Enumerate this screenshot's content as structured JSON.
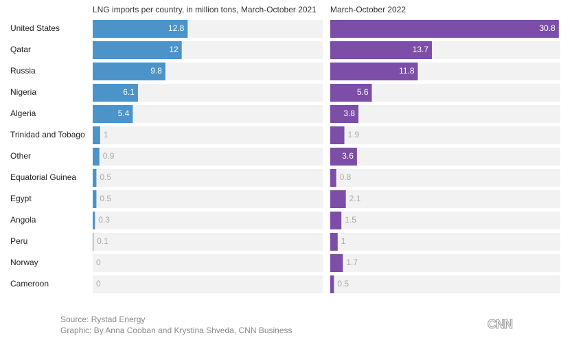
{
  "chart_data": [
    {
      "type": "bar",
      "orientation": "horizontal",
      "title": "LNG imports per country, in million tons, March-October 2021",
      "categories": [
        "United States",
        "Qatar",
        "Russia",
        "Nigeria",
        "Algeria",
        "Trinidad and Tobago",
        "Other",
        "Equatorial Guinea",
        "Egypt",
        "Angola",
        "Peru",
        "Norway",
        "Cameroon"
      ],
      "values": [
        12.8,
        12,
        9.8,
        6.1,
        5.4,
        1,
        0.9,
        0.5,
        0.5,
        0.3,
        0.1,
        0,
        0
      ],
      "color": "#4b93c9",
      "xlim": [
        0,
        31
      ]
    },
    {
      "type": "bar",
      "orientation": "horizontal",
      "title": "March-October 2022",
      "values": [
        30.8,
        13.7,
        11.8,
        5.6,
        3.8,
        1.9,
        3.6,
        0.8,
        2.1,
        1.5,
        1,
        1.7,
        0.5
      ],
      "color": "#7c4ea7",
      "xlim": [
        0,
        31
      ]
    }
  ],
  "footer": {
    "source": "Source: Rystad Energy",
    "credit": "Graphic: By Anna Cooban and Krystina Shveda, CNN Business",
    "logo": "CNN"
  }
}
